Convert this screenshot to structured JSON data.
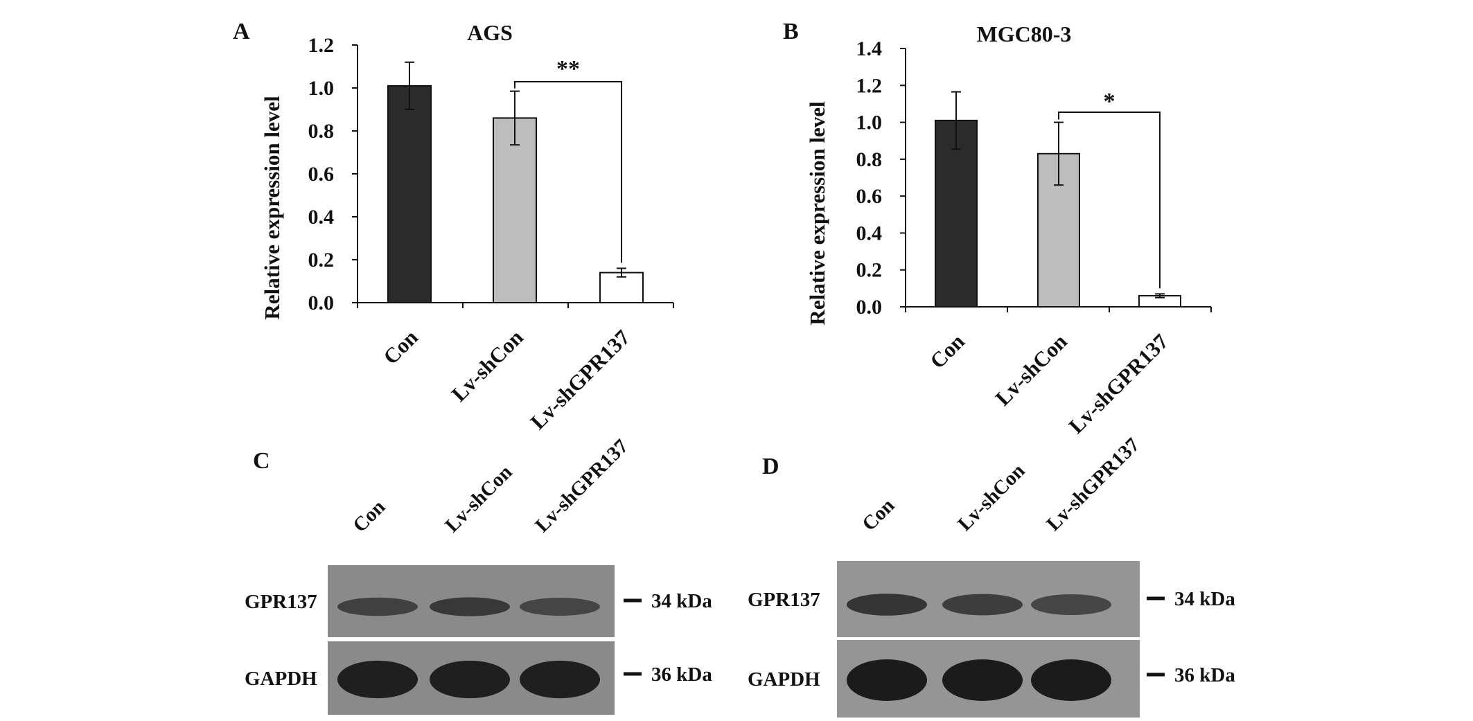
{
  "chart_data": [
    {
      "panel": "A",
      "type": "bar",
      "title": "AGS",
      "ylabel": "Relative expression level",
      "xlabel": "",
      "categories": [
        "Con",
        "Lv-shCon",
        "Lv-shGPR137"
      ],
      "values": [
        1.01,
        0.86,
        0.14
      ],
      "errors": [
        0.11,
        0.125,
        0.02
      ],
      "bar_colors": [
        "#2b2b2b",
        "#bdbdbd",
        "#ffffff"
      ],
      "ylim": [
        0,
        1.2
      ],
      "yticks": [
        "0.0",
        "0.2",
        "0.4",
        "0.6",
        "0.8",
        "1.0",
        "1.2"
      ],
      "significance": {
        "from": 1,
        "to": 2,
        "label": "**"
      },
      "grid": false
    },
    {
      "panel": "B",
      "type": "bar",
      "title": "MGC80-3",
      "ylabel": "Relative expression level",
      "xlabel": "",
      "categories": [
        "Con",
        "Lv-shCon",
        "Lv-shGPR137"
      ],
      "values": [
        1.01,
        0.83,
        0.06
      ],
      "errors": [
        0.155,
        0.17,
        0.01
      ],
      "bar_colors": [
        "#2b2b2b",
        "#bdbdbd",
        "#ffffff"
      ],
      "ylim": [
        0,
        1.4
      ],
      "yticks": [
        "0.0",
        "0.2",
        "0.4",
        "0.6",
        "0.8",
        "1.0",
        "1.2",
        "1.4"
      ],
      "significance": {
        "from": 1,
        "to": 2,
        "label": "*"
      },
      "grid": false
    }
  ],
  "blots": [
    {
      "panel": "C",
      "lanes": [
        "Con",
        "Lv-shCon",
        "Lv-shGPR137"
      ],
      "rows": [
        {
          "label": "GPR137",
          "marker": "34 kDa",
          "band_intensity": [
            0.55,
            0.65,
            0.5
          ]
        },
        {
          "label": "GAPDH",
          "marker": "36 kDa",
          "band_intensity": [
            0.95,
            0.95,
            0.95
          ]
        }
      ]
    },
    {
      "panel": "D",
      "lanes": [
        "Con",
        "Lv-shCon",
        "Lv-shGPR137"
      ],
      "rows": [
        {
          "label": "GPR137",
          "marker": "34 kDa",
          "band_intensity": [
            0.7,
            0.6,
            0.5
          ]
        },
        {
          "label": "GAPDH",
          "marker": "36 kDa",
          "band_intensity": [
            1.0,
            1.0,
            1.0
          ]
        }
      ]
    }
  ]
}
